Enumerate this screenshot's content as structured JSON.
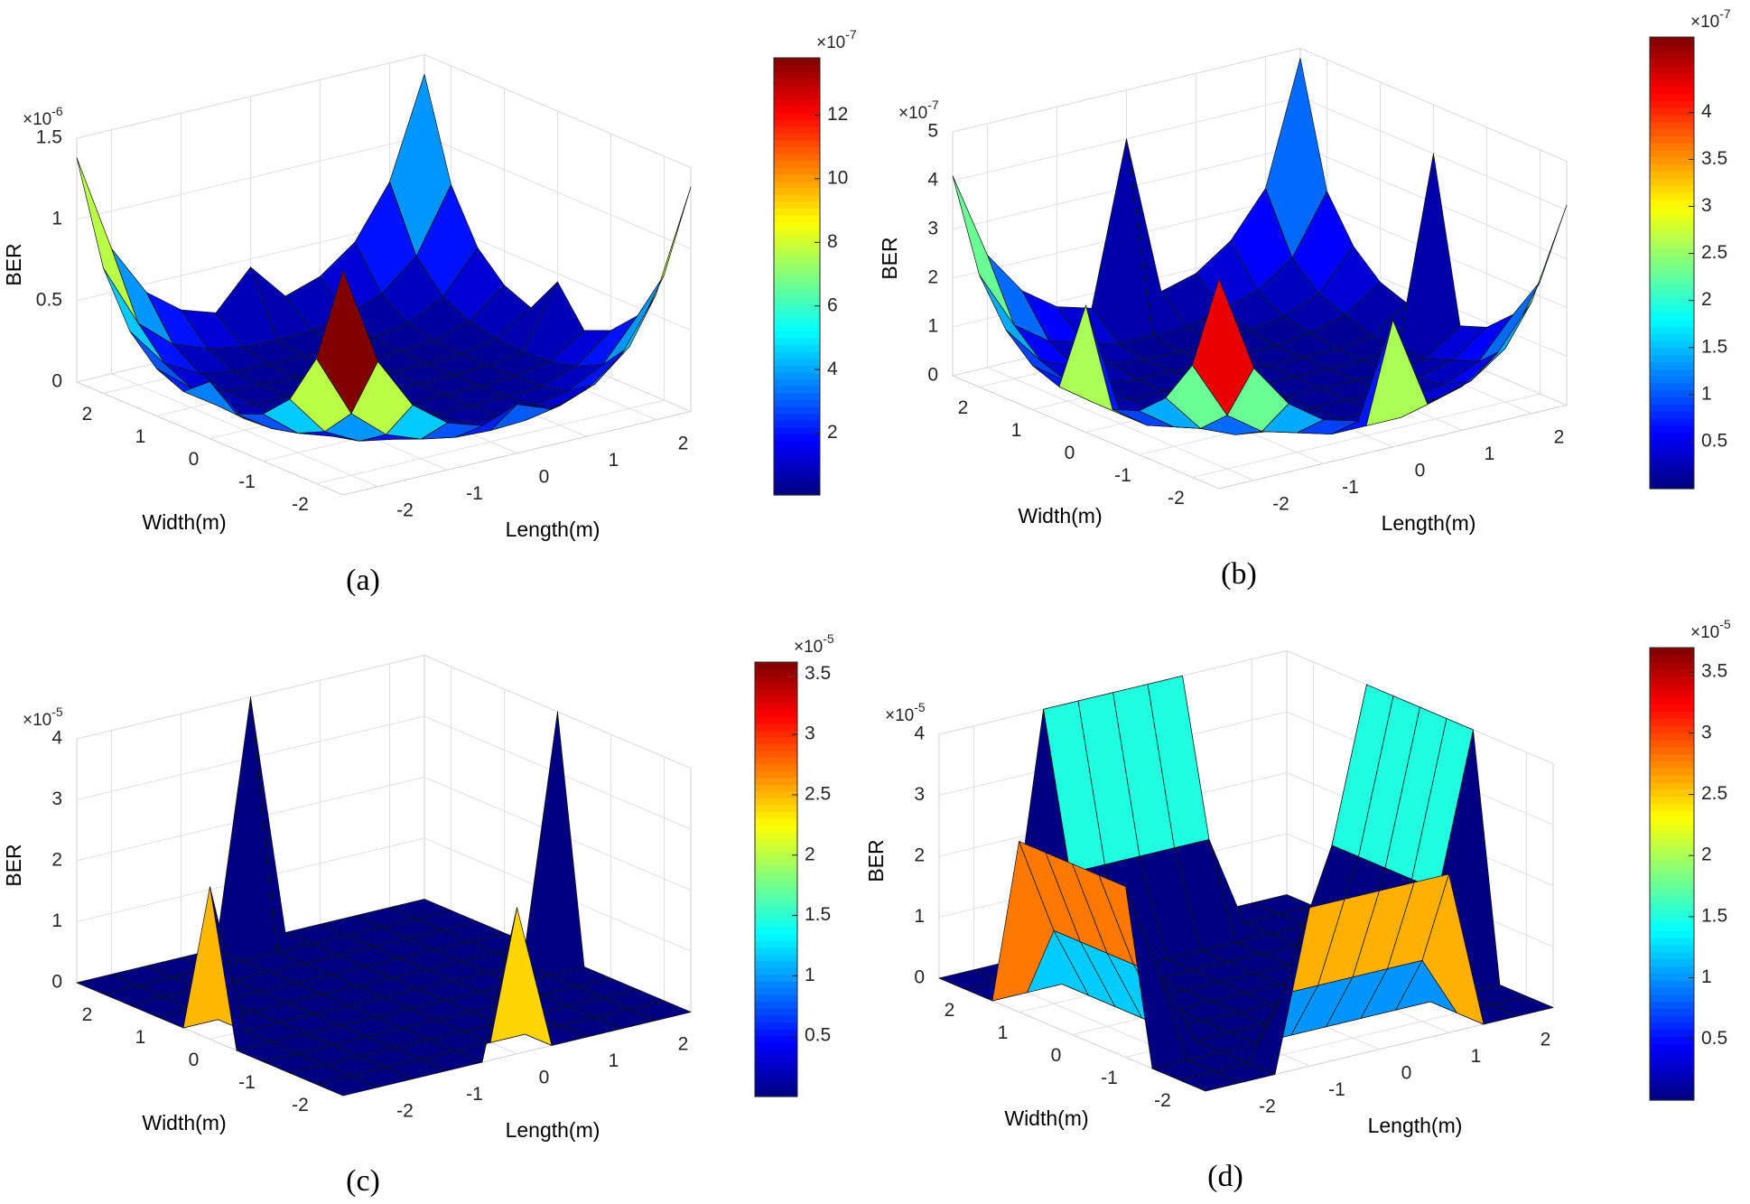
{
  "chart_data": [
    {
      "type": "surface",
      "panel_label": "(a)",
      "xlabel": "Length(m)",
      "ylabel": "Width(m)",
      "zlabel": "BER",
      "x": [
        -2.5,
        -2,
        -1.5,
        -1,
        -0.5,
        0,
        0.5,
        1,
        1.5,
        2,
        2.5
      ],
      "y": [
        -2.5,
        -2,
        -1.5,
        -1,
        -0.5,
        0,
        0.5,
        1,
        1.5,
        2,
        2.5
      ],
      "z": [
        [
          1.38,
          0.77,
          0.45,
          0.29,
          0.22,
          0.3,
          0.22,
          0.29,
          0.45,
          0.77,
          1.38
        ],
        [
          0.77,
          0.38,
          0.2,
          0.12,
          0.08,
          0.07,
          0.08,
          0.12,
          0.2,
          0.38,
          0.77
        ],
        [
          0.45,
          0.2,
          0.09,
          0.05,
          0.04,
          0.04,
          0.04,
          0.05,
          0.09,
          0.2,
          0.45
        ],
        [
          0.29,
          0.12,
          0.05,
          0.04,
          0.03,
          0.03,
          0.03,
          0.04,
          0.05,
          0.12,
          0.29
        ],
        [
          0.22,
          0.08,
          0.04,
          0.03,
          0.03,
          0.03,
          0.03,
          0.03,
          0.04,
          0.08,
          0.22
        ],
        [
          0.35,
          0.07,
          0.04,
          0.03,
          0.03,
          0.03,
          0.03,
          0.03,
          0.04,
          0.07,
          0.45
        ],
        [
          0.22,
          0.08,
          0.04,
          0.03,
          0.03,
          0.03,
          0.03,
          0.03,
          0.04,
          0.08,
          0.22
        ],
        [
          0.29,
          0.12,
          0.05,
          0.04,
          0.03,
          0.03,
          0.03,
          0.04,
          0.05,
          0.12,
          0.29
        ],
        [
          0.45,
          0.2,
          0.09,
          0.05,
          0.04,
          0.04,
          0.04,
          0.05,
          0.09,
          0.2,
          0.45
        ],
        [
          0.77,
          0.38,
          0.2,
          0.12,
          0.08,
          0.07,
          0.08,
          0.12,
          0.2,
          0.38,
          0.77
        ],
        [
          1.38,
          0.77,
          0.45,
          0.29,
          0.22,
          0.45,
          0.22,
          0.29,
          0.45,
          0.77,
          1.38
        ]
      ],
      "xlim": [
        -2.5,
        2.5
      ],
      "ylim": [
        -2.5,
        2.5
      ],
      "zlim": [
        0,
        1.5
      ],
      "xticks": [
        -2,
        -1,
        0,
        1,
        2
      ],
      "yticks": [
        -2,
        -1,
        0,
        1,
        2
      ],
      "zticks": [
        0,
        0.5,
        1,
        1.5
      ],
      "z_multiplier": {
        "base": "×10",
        "exponent": "-6"
      },
      "colormap": "jet",
      "clim": [
        0.06,
        13.8
      ],
      "cticks": [
        2,
        4,
        6,
        8,
        10,
        12
      ],
      "c_multiplier": {
        "base": "×10",
        "exponent": "-7"
      },
      "grid": true
    },
    {
      "type": "surface",
      "panel_label": "(b)",
      "xlabel": "Length(m)",
      "ylabel": "Width(m)",
      "zlabel": "BER",
      "x": [
        -2.5,
        -2,
        -1.5,
        -1,
        -0.5,
        0,
        0.5,
        1,
        1.5,
        2,
        2.5
      ],
      "y": [
        -2.5,
        -2,
        -1.5,
        -1,
        -0.5,
        0,
        0.5,
        1,
        1.5,
        2,
        2.5
      ],
      "z": [
        [
          4.3,
          2.3,
          1.4,
          0.9,
          0.7,
          2.6,
          0.7,
          0.9,
          1.4,
          2.3,
          4.1
        ],
        [
          2.3,
          1.1,
          0.6,
          0.4,
          0.2,
          0.2,
          0.2,
          0.4,
          0.6,
          1.1,
          2.3
        ],
        [
          1.4,
          0.6,
          0.3,
          0.2,
          0.1,
          0.1,
          0.1,
          0.2,
          0.3,
          0.6,
          1.4
        ],
        [
          0.9,
          0.4,
          0.2,
          0.1,
          0.1,
          0.1,
          0.1,
          0.1,
          0.2,
          0.4,
          0.9
        ],
        [
          0.7,
          0.2,
          0.1,
          0.1,
          0.1,
          0.1,
          0.1,
          0.1,
          0.1,
          0.2,
          0.7
        ],
        [
          2.6,
          0.2,
          0.1,
          0.1,
          0.1,
          0.1,
          0.1,
          0.1,
          0.1,
          0.2,
          4
        ],
        [
          0.7,
          0.2,
          0.1,
          0.1,
          0.1,
          0.1,
          0.1,
          0.1,
          0.1,
          0.2,
          0.7
        ],
        [
          0.9,
          0.4,
          0.2,
          0.1,
          0.1,
          0.1,
          0.1,
          0.1,
          0.2,
          0.4,
          0.9
        ],
        [
          1.4,
          0.6,
          0.3,
          0.2,
          0.1,
          0.1,
          0.1,
          0.2,
          0.3,
          0.6,
          1.4
        ],
        [
          2.3,
          1.1,
          0.6,
          0.4,
          0.2,
          0.2,
          0.2,
          0.4,
          0.6,
          1.1,
          2.3
        ],
        [
          4.1,
          2.3,
          1.4,
          0.9,
          0.7,
          4,
          0.7,
          0.9,
          1.4,
          2.3,
          4.8
        ]
      ],
      "xlim": [
        -2.5,
        2.5
      ],
      "ylim": [
        -2.5,
        2.5
      ],
      "zlim": [
        0,
        5
      ],
      "xticks": [
        -2,
        -1,
        0,
        1,
        2
      ],
      "yticks": [
        -2,
        -1,
        0,
        1,
        2
      ],
      "zticks": [
        0,
        1,
        2,
        3,
        4,
        5
      ],
      "z_multiplier": {
        "base": "×10",
        "exponent": "-7"
      },
      "colormap": "jet",
      "clim": [
        0,
        4.8
      ],
      "cticks": [
        0.5,
        1,
        1.5,
        2,
        2.5,
        3,
        3.5,
        4
      ],
      "c_multiplier": {
        "base": "×10",
        "exponent": "-7"
      },
      "grid": true
    },
    {
      "type": "surface",
      "panel_label": "(c)",
      "xlabel": "Length(m)",
      "ylabel": "Width(m)",
      "zlabel": "BER",
      "x": [
        -2.5,
        -2,
        -1.5,
        -1,
        -0.5,
        0,
        0.5,
        1,
        1.5,
        2,
        2.5
      ],
      "y": [
        -2.5,
        -2,
        -1.5,
        -1,
        -0.5,
        0,
        0.5,
        1,
        1.5,
        2,
        2.5
      ],
      "z": [
        [
          0,
          0,
          0,
          0,
          0,
          2.4,
          0,
          0,
          0,
          0,
          0
        ],
        [
          0,
          0,
          0,
          0,
          0,
          0,
          0,
          0,
          0,
          0,
          0
        ],
        [
          0,
          0,
          0,
          0,
          0,
          0,
          0,
          0,
          0,
          0,
          0
        ],
        [
          0,
          0,
          0,
          0,
          0,
          0,
          0,
          0,
          0,
          0,
          0
        ],
        [
          0,
          0,
          0,
          0,
          0,
          0,
          0,
          0,
          0,
          0,
          0
        ],
        [
          2.5,
          0,
          0,
          0,
          0,
          0,
          0,
          0,
          0,
          0,
          4
        ],
        [
          0,
          0,
          0,
          0,
          0,
          0,
          0,
          0,
          0,
          0,
          0
        ],
        [
          0,
          0,
          0,
          0,
          0,
          0,
          0,
          0,
          0,
          0,
          0
        ],
        [
          0,
          0,
          0,
          0,
          0,
          0,
          0,
          0,
          0,
          0,
          0
        ],
        [
          0,
          0,
          0,
          0,
          0,
          0,
          0,
          0,
          0,
          0,
          0
        ],
        [
          0,
          0,
          0,
          0,
          0,
          4,
          0,
          0,
          0,
          0,
          0
        ]
      ],
      "xlim": [
        -2.5,
        2.5
      ],
      "ylim": [
        -2.5,
        2.5
      ],
      "zlim": [
        0,
        4
      ],
      "xticks": [
        -2,
        -1,
        0,
        1,
        2
      ],
      "yticks": [
        -2,
        -1,
        0,
        1,
        2
      ],
      "zticks": [
        0,
        1,
        2,
        3,
        4
      ],
      "z_multiplier": {
        "base": "×10",
        "exponent": "-5"
      },
      "colormap": "jet",
      "clim": [
        0,
        3.6
      ],
      "cticks": [
        0.5,
        1,
        1.5,
        2,
        2.5,
        3,
        3.5
      ],
      "c_multiplier": {
        "base": "×10",
        "exponent": "-5"
      },
      "grid": true
    },
    {
      "type": "surface",
      "panel_label": "(d)",
      "xlabel": "Length(m)",
      "ylabel": "Width(m)",
      "zlabel": "BER",
      "x": [
        -2.5,
        -2,
        -1.5,
        -1,
        -0.5,
        0,
        0.5,
        1,
        1.5,
        2,
        2.5
      ],
      "y": [
        -2.5,
        -2,
        -1.5,
        -1,
        -0.5,
        0,
        0.5,
        1,
        1.5,
        2,
        2.5
      ],
      "z": [
        [
          0,
          0,
          0,
          2.6,
          2.6,
          2.6,
          2.6,
          2.6,
          0,
          0,
          0
        ],
        [
          0,
          0,
          0,
          1,
          1,
          1,
          1,
          1,
          0,
          0,
          0
        ],
        [
          0,
          0,
          0,
          0,
          0,
          0,
          0,
          0,
          0,
          0,
          0
        ],
        [
          2.8,
          1.2,
          0,
          0,
          0,
          0,
          0,
          0,
          0,
          1.5,
          4
        ],
        [
          2.8,
          1.2,
          0,
          0,
          0,
          0,
          0,
          0,
          0,
          1.5,
          4
        ],
        [
          2.8,
          1.2,
          0,
          0,
          0,
          0,
          0,
          0,
          0,
          1.5,
          4
        ],
        [
          2.8,
          1.2,
          0,
          0,
          0,
          0,
          0,
          0,
          0,
          1.5,
          4
        ],
        [
          2.8,
          1.2,
          0,
          0,
          0,
          0,
          0,
          0,
          0,
          1.5,
          4
        ],
        [
          0,
          0,
          0,
          0,
          0,
          0,
          0,
          0,
          0,
          0,
          0
        ],
        [
          0,
          0,
          0,
          1.5,
          1.5,
          1.5,
          1.5,
          1.5,
          0,
          0,
          0
        ],
        [
          0,
          0,
          0,
          4,
          4,
          4,
          4,
          4,
          0,
          0,
          0
        ]
      ],
      "xlim": [
        -2.5,
        2.5
      ],
      "ylim": [
        -2.5,
        2.5
      ],
      "zlim": [
        0,
        4
      ],
      "xticks": [
        -2,
        -1,
        0,
        1,
        2
      ],
      "yticks": [
        -2,
        -1,
        0,
        1,
        2
      ],
      "zticks": [
        0,
        1,
        2,
        3,
        4
      ],
      "z_multiplier": {
        "base": "×10",
        "exponent": "-5"
      },
      "colormap": "jet",
      "clim": [
        0,
        3.7
      ],
      "cticks": [
        0.5,
        1,
        1.5,
        2,
        2.5,
        3,
        3.5
      ],
      "c_multiplier": {
        "base": "×10",
        "exponent": "-5"
      },
      "grid": true
    }
  ]
}
